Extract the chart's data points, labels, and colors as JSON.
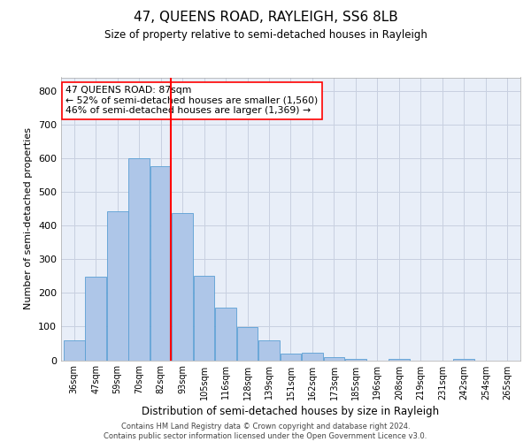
{
  "title": "47, QUEENS ROAD, RAYLEIGH, SS6 8LB",
  "subtitle": "Size of property relative to semi-detached houses in Rayleigh",
  "xlabel": "Distribution of semi-detached houses by size in Rayleigh",
  "ylabel": "Number of semi-detached properties",
  "footer_line1": "Contains HM Land Registry data © Crown copyright and database right 2024.",
  "footer_line2": "Contains public sector information licensed under the Open Government Licence v3.0.",
  "categories": [
    "36sqm",
    "47sqm",
    "59sqm",
    "70sqm",
    "82sqm",
    "93sqm",
    "105sqm",
    "116sqm",
    "128sqm",
    "139sqm",
    "151sqm",
    "162sqm",
    "173sqm",
    "185sqm",
    "196sqm",
    "208sqm",
    "219sqm",
    "231sqm",
    "242sqm",
    "254sqm",
    "265sqm"
  ],
  "values": [
    60,
    248,
    443,
    600,
    575,
    438,
    252,
    157,
    98,
    60,
    20,
    22,
    10,
    5,
    0,
    5,
    0,
    0,
    5,
    0,
    0
  ],
  "bar_color": "#aec6e8",
  "bar_edge_color": "#5a9fd4",
  "marker_color": "red",
  "annotation_line1": "47 QUEENS ROAD: 87sqm",
  "annotation_line2": "← 52% of semi-detached houses are smaller (1,560)",
  "annotation_line3": "46% of semi-detached houses are larger (1,369) →",
  "annotation_box_color": "white",
  "annotation_box_edge": "red",
  "ylim": [
    0,
    840
  ],
  "yticks": [
    0,
    100,
    200,
    300,
    400,
    500,
    600,
    700,
    800
  ],
  "grid_color": "#c8d0e0",
  "background_color": "#e8eef8"
}
